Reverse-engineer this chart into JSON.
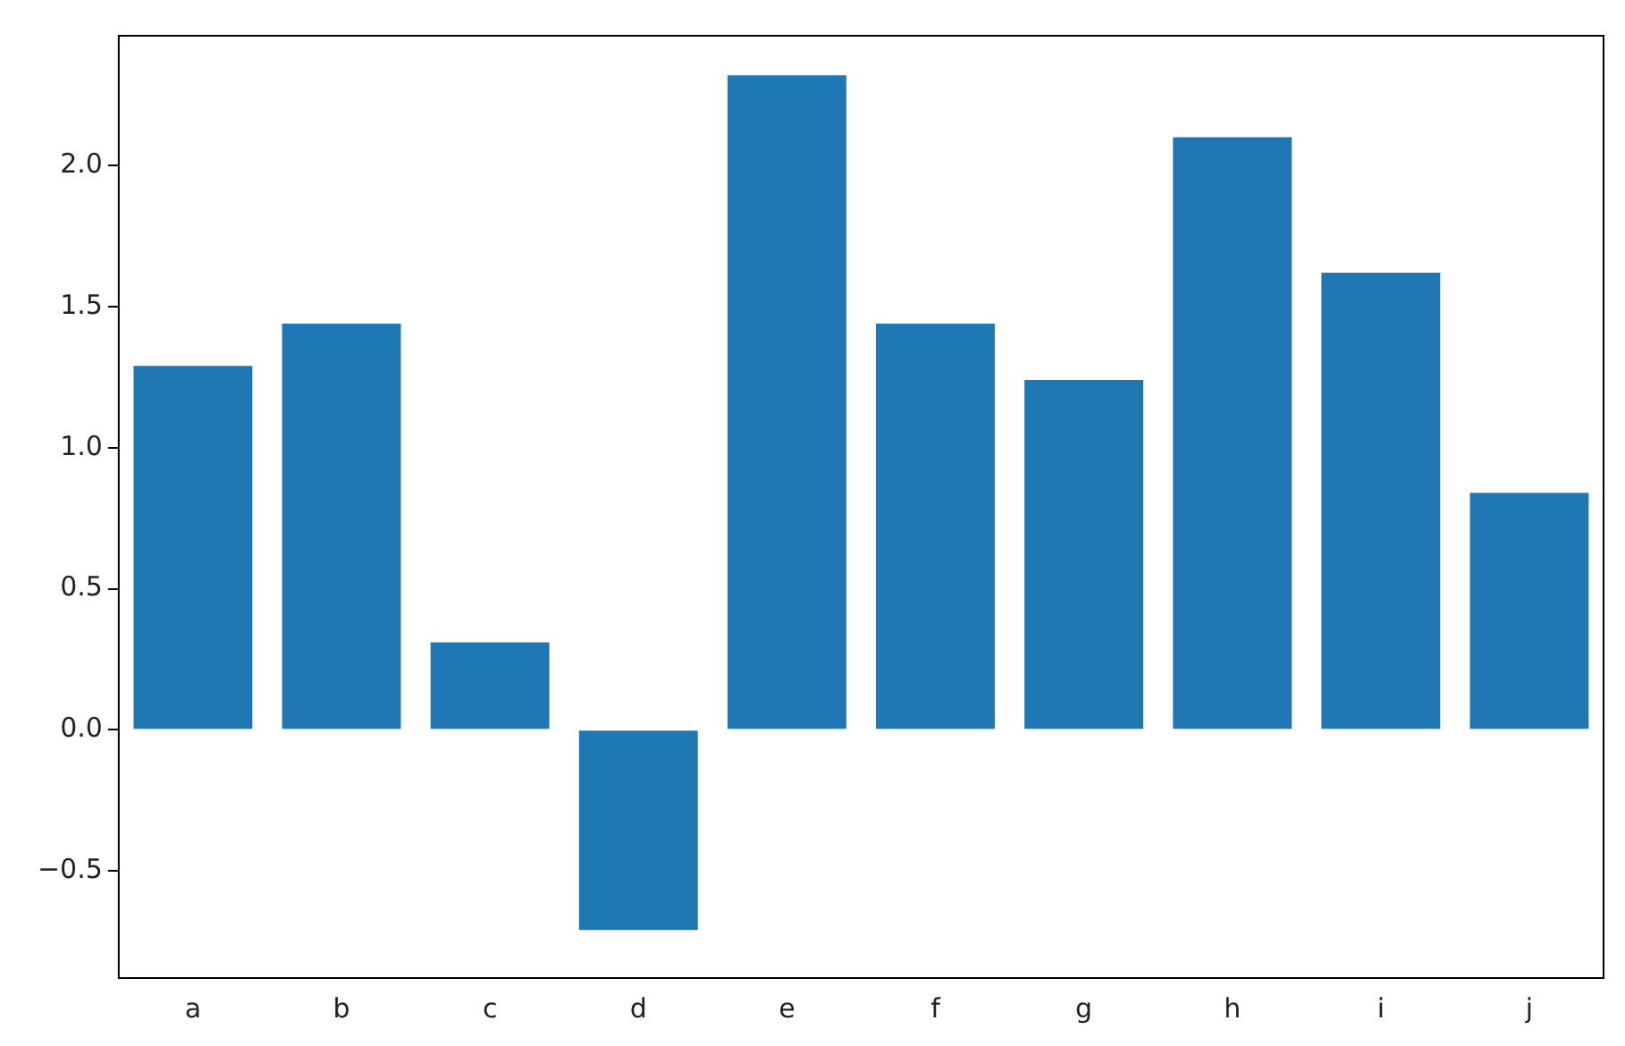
{
  "chart_data": {
    "type": "bar",
    "categories": [
      "a",
      "b",
      "c",
      "d",
      "e",
      "f",
      "g",
      "h",
      "i",
      "j"
    ],
    "values": [
      1.29,
      1.44,
      0.31,
      -0.71,
      2.32,
      1.44,
      1.24,
      2.1,
      1.62,
      0.84
    ],
    "color": "#1f77b4",
    "ylim": [
      -0.88,
      2.46
    ],
    "yticks": [
      -0.5,
      {
        "value": 0,
        "label": "0.0"
      },
      0.5,
      {
        "value": 1,
        "label": "1.0"
      },
      1.5,
      {
        "value": 2,
        "label": "2.0"
      }
    ],
    "grid": false,
    "legend": false
  }
}
